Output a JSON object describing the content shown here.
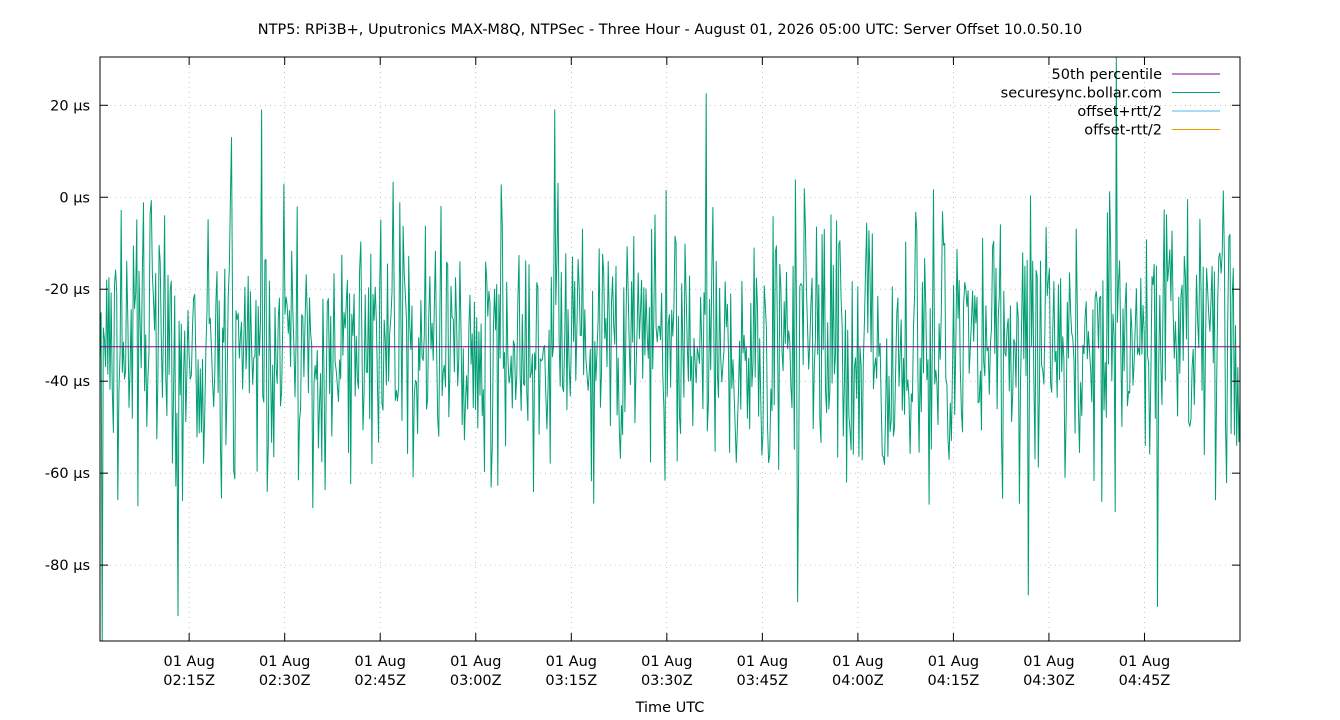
{
  "chart_data": {
    "type": "line",
    "title": "NTP5: RPi3B+, Uputronics MAX-M8Q, NTPSec - Three Hour - August 01, 2026 05:00 UTC: Server Offset 10.0.50.10",
    "xlabel": "Time UTC",
    "ylabel": "",
    "grid": true,
    "legend_position": "top-right",
    "xlim": [
      "02:01Z",
      "05:00Z"
    ],
    "ylim": [
      -96.5,
      30.5
    ],
    "y_ticks": [
      {
        "value": 20,
        "label": "20 µs"
      },
      {
        "value": 0,
        "label": "0 µs"
      },
      {
        "value": -20,
        "label": "-20 µs"
      },
      {
        "value": -40,
        "label": "-40 µs"
      },
      {
        "value": -60,
        "label": "-60 µs"
      },
      {
        "value": -80,
        "label": "-80 µs"
      }
    ],
    "x_ticks": [
      {
        "minutes": 14,
        "line1": "01 Aug",
        "line2": "02:15Z"
      },
      {
        "minutes": 29,
        "line1": "01 Aug",
        "line2": "02:30Z"
      },
      {
        "minutes": 44,
        "line1": "01 Aug",
        "line2": "02:45Z"
      },
      {
        "minutes": 59,
        "line1": "01 Aug",
        "line2": "03:00Z"
      },
      {
        "minutes": 74,
        "line1": "01 Aug",
        "line2": "03:15Z"
      },
      {
        "minutes": 89,
        "line1": "01 Aug",
        "line2": "03:30Z"
      },
      {
        "minutes": 104,
        "line1": "01 Aug",
        "line2": "03:45Z"
      },
      {
        "minutes": 119,
        "line1": "01 Aug",
        "line2": "04:00Z"
      },
      {
        "minutes": 134,
        "line1": "01 Aug",
        "line2": "04:15Z"
      },
      {
        "minutes": 149,
        "line1": "01 Aug",
        "line2": "04:30Z"
      },
      {
        "minutes": 164,
        "line1": "01 Aug",
        "line2": "04:45Z"
      }
    ],
    "series": [
      {
        "name": "50th percentile",
        "color": "#7a0a8c",
        "constant": -32.5
      },
      {
        "name": "securesync.bollar.com",
        "color": "#009e73",
        "samples": 1024,
        "center": -32,
        "spread": 29,
        "min": -96.5,
        "max": 30.5,
        "notable_values": [
          {
            "minutes_offset": 0.4,
            "value": -96.5
          },
          {
            "minutes_offset": 12.2,
            "value": -91
          },
          {
            "minutes_offset": 20.6,
            "value": 13
          },
          {
            "minutes_offset": 25.3,
            "value": 19
          },
          {
            "minutes_offset": 71.4,
            "value": 19
          },
          {
            "minutes_offset": 95.1,
            "value": 22.5
          },
          {
            "minutes_offset": 109.6,
            "value": -88
          },
          {
            "minutes_offset": 145.7,
            "value": -86.5
          },
          {
            "minutes_offset": 159.5,
            "value": 30.5
          },
          {
            "minutes_offset": 166.0,
            "value": -89
          }
        ]
      },
      {
        "name": "offset+rtt/2",
        "color": "#56b4e9"
      },
      {
        "name": "offset-rtt/2",
        "color": "#e69f00"
      }
    ]
  }
}
